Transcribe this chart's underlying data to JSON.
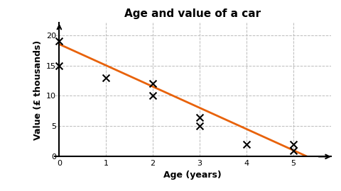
{
  "title": "Age and value of a car",
  "xlabel": "Age (years)",
  "ylabel": "Value (£ thousands)",
  "scatter_x": [
    0,
    0,
    1,
    2,
    2,
    3,
    3,
    4,
    5,
    5
  ],
  "scatter_y": [
    19,
    15,
    13,
    12,
    10,
    6.5,
    5,
    2,
    2,
    1
  ],
  "line_x": [
    0,
    5.3
  ],
  "line_y": [
    18.5,
    0.0
  ],
  "line_color": "#E8620A",
  "marker_color": "black",
  "xlim": [
    -0.1,
    5.8
  ],
  "ylim": [
    0,
    22
  ],
  "xticks": [
    0,
    1,
    2,
    3,
    4,
    5
  ],
  "yticks": [
    0,
    5,
    10,
    15,
    20
  ],
  "grid_color": "#bbbbbb",
  "bg_color": "#ffffff",
  "title_fontsize": 11,
  "label_fontsize": 9,
  "tick_fontsize": 8
}
